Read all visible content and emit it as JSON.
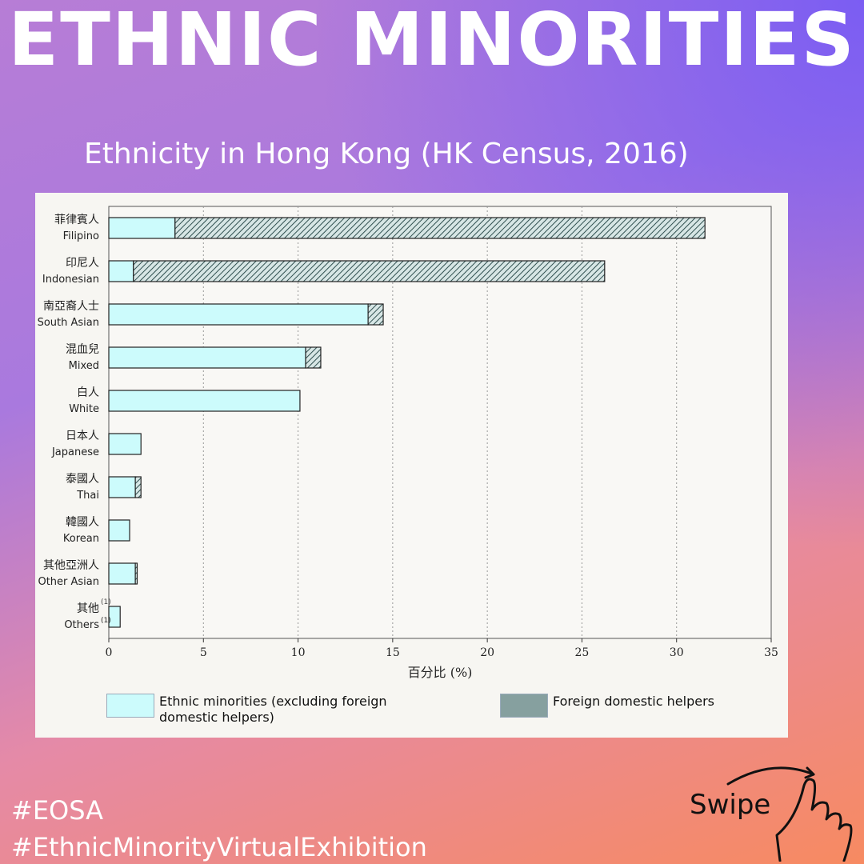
{
  "header": {
    "title": "ETHNIC MINORITIES",
    "subtitle": "Ethnicity in Hong Kong (HK Census, 2016)"
  },
  "chart_data": {
    "type": "bar",
    "orientation": "horizontal",
    "stacked": true,
    "categories": [
      {
        "zh": "菲律賓人",
        "en": "Filipino"
      },
      {
        "zh": "印尼人",
        "en": "Indonesian"
      },
      {
        "zh": "南亞裔人士",
        "en": "South Asian"
      },
      {
        "zh": "混血兒",
        "en": "Mixed"
      },
      {
        "zh": "白人",
        "en": "White"
      },
      {
        "zh": "日本人",
        "en": "Japanese"
      },
      {
        "zh": "泰國人",
        "en": "Thai"
      },
      {
        "zh": "韓國人",
        "en": "Korean"
      },
      {
        "zh": "其他亞洲人",
        "en": "Other Asian"
      },
      {
        "zh": "其他",
        "en": "Others",
        "note": "(1)"
      }
    ],
    "series": [
      {
        "name": "Ethnic minorities (excluding foreign domestic helpers)",
        "values": [
          3.5,
          1.3,
          13.7,
          10.4,
          10.1,
          1.7,
          1.4,
          1.1,
          1.4,
          0.6
        ]
      },
      {
        "name": "Foreign domestic helpers",
        "values": [
          28.0,
          24.9,
          0.8,
          0.8,
          0,
          0,
          0.3,
          0,
          0.1,
          0
        ]
      }
    ],
    "xlabel": "百分比 (%)",
    "xlim": [
      0,
      35
    ],
    "xticks": [
      "0",
      "5",
      "10",
      "15",
      "20",
      "25",
      "30",
      "35"
    ],
    "grid": true,
    "legend_position": "bottom",
    "colors": {
      "minorities": "#ccfbfc",
      "helpers": "#86a09f"
    }
  },
  "footer": {
    "hashtags": [
      "#EOSA",
      "#EthnicMinorityVirtualExhibition"
    ],
    "swipe_label": "Swipe"
  }
}
